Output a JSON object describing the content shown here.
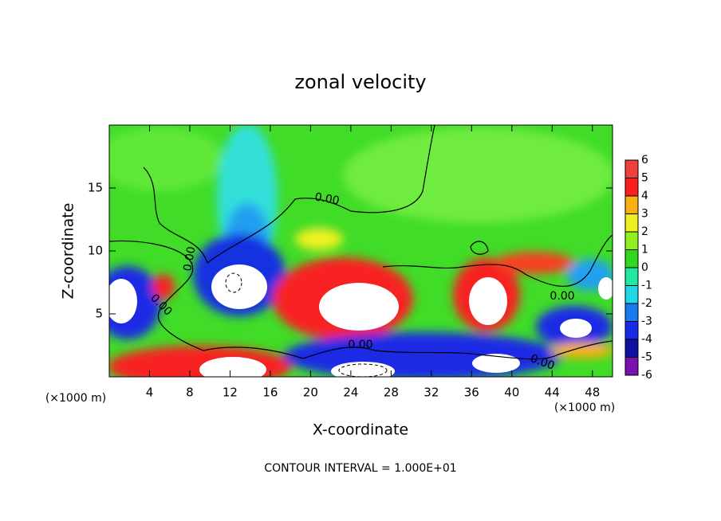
{
  "chart_data": {
    "type": "contour",
    "title": "zonal velocity",
    "x_label": "X-coordinate",
    "y_label": "Z-coordinate",
    "unit_label": "(×1000 m)",
    "footer": "CONTOUR INTERVAL = 1.000E+01",
    "xlim": [
      0,
      50
    ],
    "xticks": [
      4,
      8,
      12,
      16,
      20,
      24,
      28,
      32,
      36,
      40,
      44,
      48
    ],
    "ylim": [
      0,
      20
    ],
    "yticks": [
      5,
      10,
      15
    ],
    "colorbar": {
      "lim": [
        -6,
        6
      ],
      "ticks": [
        6,
        5,
        4,
        3,
        2,
        1,
        0,
        -1,
        -2,
        -3,
        -4,
        -5,
        -6
      ],
      "colors": [
        "#7a10b0",
        "#1010a0",
        "#1a2ae6",
        "#1a7af0",
        "#20d8e8",
        "#20e8a0",
        "#30d820",
        "#90f020",
        "#f0f020",
        "#f8b010",
        "#f82020",
        "#f04040"
      ]
    },
    "contour_labels": [
      "0.00",
      "0.00",
      "0.00",
      "0.00",
      "0.00",
      "0.00"
    ]
  }
}
